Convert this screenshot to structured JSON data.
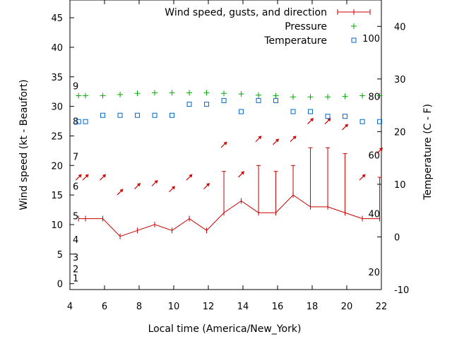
{
  "chart_data": {
    "type": "line",
    "xlabel": "Local time (America/New_York)",
    "ylabel_left": "Wind speed (kt - Beaufort)",
    "ylabel_right": "Temperature (C - F)",
    "x_ticks": [
      4,
      6,
      8,
      10,
      12,
      14,
      16,
      18,
      20,
      22
    ],
    "xlim": [
      4,
      22
    ],
    "y_left_ticks": [
      0,
      5,
      10,
      15,
      20,
      25,
      30,
      35,
      40,
      45
    ],
    "ylim_left": [
      -1,
      48
    ],
    "y_right_ticks": [
      -10,
      0,
      10,
      20,
      30,
      40
    ],
    "ylim_right": [
      -10,
      45
    ],
    "beaufort": [
      {
        "label": "1",
        "y": 1
      },
      {
        "label": "2",
        "y": 2.5
      },
      {
        "label": "3",
        "y": 4.5
      },
      {
        "label": "4",
        "y": 7.5
      },
      {
        "label": "5",
        "y": 11.5
      },
      {
        "label": "6",
        "y": 16.5
      },
      {
        "label": "7",
        "y": 21.5
      },
      {
        "label": "8",
        "y": 27.5
      },
      {
        "label": "9",
        "y": 33.5
      }
    ],
    "fahrenheit": [
      {
        "label": "20",
        "y": -6.67
      },
      {
        "label": "40",
        "y": 4.44
      },
      {
        "label": "60",
        "y": 15.56
      },
      {
        "label": "80",
        "y": 26.67
      },
      {
        "label": "100",
        "y": 37.78
      }
    ],
    "legend": {
      "wind": "Wind speed, gusts, and direction",
      "pressure": "Pressure",
      "temperature": "Temperature"
    },
    "series": [
      {
        "name": "Wind speed, gusts, and direction",
        "color": "#cc0000",
        "x": [
          4.5,
          4.9,
          5.9,
          6.9,
          7.9,
          8.9,
          9.9,
          10.9,
          11.9,
          12.9,
          13.9,
          14.9,
          15.9,
          16.9,
          17.9,
          18.9,
          19.9,
          20.9,
          21.9
        ],
        "values": [
          11,
          11,
          11,
          8,
          9,
          10,
          9,
          11,
          9,
          12,
          14,
          12,
          12,
          15,
          13,
          13,
          12,
          11,
          11
        ],
        "gusts": [
          null,
          null,
          null,
          null,
          null,
          null,
          null,
          null,
          null,
          19,
          null,
          20,
          19,
          20,
          23,
          23,
          22,
          null,
          18
        ],
        "arrow_y": [
          18,
          18,
          18,
          15.5,
          16.5,
          17,
          16,
          18,
          16.5,
          23.5,
          18.5,
          24.5,
          24,
          24.5,
          27.5,
          27.5,
          26.5,
          18,
          22.5
        ]
      },
      {
        "name": "Pressure",
        "color": "#00aa00",
        "x": [
          4.5,
          4.9,
          5.9,
          6.9,
          7.9,
          8.9,
          9.9,
          10.9,
          11.9,
          12.9,
          13.9,
          14.9,
          15.9,
          16.9,
          17.9,
          18.9,
          19.9,
          20.9,
          21.9
        ],
        "values": [
          31.8,
          31.8,
          31.8,
          32,
          32.2,
          32.3,
          32.3,
          32.3,
          32.3,
          32.2,
          32.1,
          31.9,
          31.8,
          31.6,
          31.6,
          31.6,
          31.7,
          31.8,
          31.8
        ]
      },
      {
        "name": "Temperature",
        "color": "#0066cc",
        "x": [
          4.5,
          4.9,
          5.9,
          6.9,
          7.9,
          8.9,
          9.9,
          10.9,
          11.9,
          12.9,
          13.9,
          14.9,
          15.9,
          16.9,
          17.9,
          18.9,
          19.9,
          20.9,
          21.9
        ],
        "values": [
          21.9,
          21.9,
          23.1,
          23.1,
          23.1,
          23.1,
          23.1,
          25.2,
          25.2,
          25.9,
          23.8,
          25.9,
          25.9,
          23.8,
          23.8,
          22.9,
          22.9,
          21.9,
          21.9
        ]
      }
    ]
  }
}
